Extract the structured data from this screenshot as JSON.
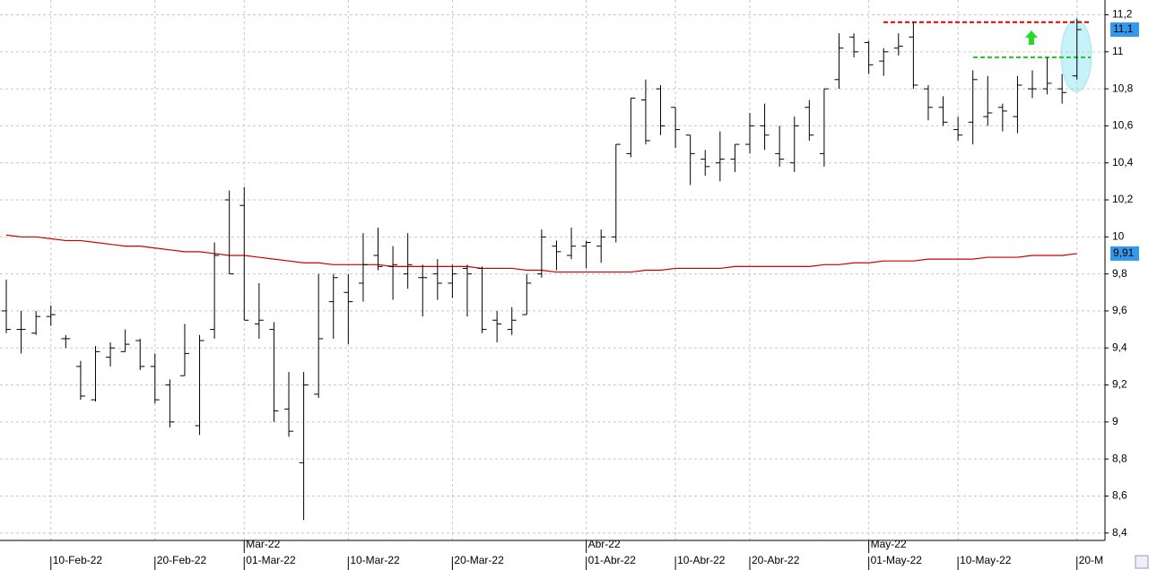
{
  "chart_data": {
    "type": "ohlc",
    "categories": [
      null,
      null,
      null,
      "10-Feb-22",
      null,
      null,
      null,
      null,
      null,
      null,
      "20-Feb-22",
      null,
      null,
      null,
      null,
      null,
      "01-Mar-22",
      null,
      null,
      null,
      null,
      null,
      null,
      "10-Mar-22",
      null,
      null,
      null,
      null,
      null,
      null,
      "20-Mar-22",
      null,
      null,
      null,
      null,
      null,
      null,
      null,
      null,
      "01-Abr-22",
      null,
      null,
      null,
      null,
      null,
      "10-Abr-22",
      null,
      null,
      null,
      null,
      "20-Abr-22",
      null,
      null,
      null,
      null,
      null,
      null,
      null,
      "01-May-22",
      null,
      null,
      null,
      null,
      null,
      "10-May-22",
      null,
      null,
      null,
      null,
      null,
      null,
      null,
      "20-M"
    ],
    "month_labels": [
      null,
      null,
      null,
      null,
      null,
      null,
      null,
      null,
      null,
      null,
      null,
      null,
      null,
      null,
      null,
      null,
      "Mar-22",
      null,
      null,
      null,
      null,
      null,
      null,
      null,
      null,
      null,
      null,
      null,
      null,
      null,
      null,
      null,
      null,
      null,
      null,
      null,
      null,
      null,
      null,
      "Abr-22",
      null,
      null,
      null,
      null,
      null,
      null,
      null,
      null,
      null,
      null,
      null,
      null,
      null,
      null,
      null,
      null,
      null,
      null,
      "May-22",
      null,
      null,
      null,
      null,
      null,
      null,
      null,
      null,
      null,
      null,
      null,
      null,
      null,
      null,
      null
    ],
    "ohlc": [
      [
        9.6,
        9.77,
        9.48,
        9.5
      ],
      [
        9.5,
        9.6,
        9.37,
        9.5
      ],
      [
        9.48,
        9.6,
        9.47,
        9.57
      ],
      [
        9.57,
        9.63,
        9.52,
        9.58
      ],
      [
        9.45,
        9.47,
        9.4,
        9.45
      ],
      [
        9.3,
        9.33,
        9.12,
        9.14
      ],
      [
        9.12,
        9.41,
        9.11,
        9.38
      ],
      [
        9.35,
        9.43,
        9.3,
        9.4
      ],
      [
        9.38,
        9.5,
        9.38,
        9.42
      ],
      [
        9.44,
        9.45,
        9.28,
        9.3
      ],
      [
        9.3,
        9.37,
        9.1,
        9.12
      ],
      [
        9.2,
        9.23,
        8.97,
        9.0
      ],
      [
        9.25,
        9.53,
        9.25,
        9.37
      ],
      [
        8.98,
        9.47,
        8.93,
        9.44
      ],
      [
        9.5,
        9.97,
        9.45,
        9.9
      ],
      [
        10.2,
        10.25,
        9.8,
        9.8
      ],
      [
        10.17,
        10.27,
        9.55,
        9.55
      ],
      [
        9.53,
        9.75,
        9.45,
        9.55
      ],
      [
        9.5,
        9.54,
        9.0,
        9.06
      ],
      [
        9.07,
        9.27,
        8.92,
        8.95
      ],
      [
        8.78,
        9.27,
        8.47,
        9.2
      ],
      [
        9.15,
        9.8,
        9.13,
        9.45
      ],
      [
        9.65,
        9.8,
        9.45,
        9.78
      ],
      [
        9.7,
        9.8,
        9.42,
        9.65
      ],
      [
        9.75,
        10.02,
        9.65,
        9.85
      ],
      [
        9.9,
        10.05,
        9.82,
        9.84
      ],
      [
        9.84,
        9.95,
        9.66,
        9.85
      ],
      [
        9.8,
        10.02,
        9.72,
        9.85
      ],
      [
        9.78,
        9.85,
        9.57,
        9.78
      ],
      [
        9.8,
        9.88,
        9.66,
        9.75
      ],
      [
        9.75,
        9.85,
        9.67,
        9.8
      ],
      [
        9.83,
        9.85,
        9.57,
        9.8
      ],
      [
        9.83,
        9.84,
        9.48,
        9.5
      ],
      [
        9.55,
        9.6,
        9.43,
        9.53
      ],
      [
        9.5,
        9.62,
        9.47,
        9.55
      ],
      [
        9.58,
        9.8,
        9.58,
        9.75
      ],
      [
        9.8,
        10.04,
        9.78,
        10.0
      ],
      [
        9.95,
        9.98,
        9.82,
        9.92
      ],
      [
        9.9,
        10.05,
        9.88,
        9.95
      ],
      [
        9.95,
        9.98,
        9.83,
        9.97
      ],
      [
        9.95,
        10.04,
        9.86,
        10.0
      ],
      [
        10.0,
        10.5,
        9.97,
        10.5
      ],
      [
        10.45,
        10.75,
        10.43,
        10.75
      ],
      [
        10.74,
        10.85,
        10.5,
        10.52
      ],
      [
        10.8,
        10.82,
        10.55,
        10.6
      ],
      [
        10.7,
        10.7,
        10.48,
        10.58
      ],
      [
        10.55,
        10.55,
        10.28,
        10.45
      ],
      [
        10.42,
        10.47,
        10.33,
        10.38
      ],
      [
        10.4,
        10.57,
        10.3,
        10.42
      ],
      [
        10.42,
        10.5,
        10.35,
        10.5
      ],
      [
        10.5,
        10.67,
        10.45,
        10.6
      ],
      [
        10.6,
        10.72,
        10.47,
        10.55
      ],
      [
        10.45,
        10.6,
        10.38,
        10.42
      ],
      [
        10.4,
        10.65,
        10.35,
        10.6
      ],
      [
        10.7,
        10.74,
        10.52,
        10.55
      ],
      [
        10.45,
        10.8,
        10.38,
        10.8
      ],
      [
        10.85,
        11.1,
        10.8,
        11.02
      ],
      [
        11.08,
        11.1,
        10.97,
        11.0
      ],
      [
        11.05,
        11.06,
        10.88,
        10.93
      ],
      [
        10.95,
        11.02,
        10.87,
        11.0
      ],
      [
        11.02,
        11.1,
        10.98,
        11.03
      ],
      [
        11.08,
        11.16,
        10.8,
        10.82
      ],
      [
        10.8,
        10.82,
        10.63,
        10.7
      ],
      [
        10.7,
        10.76,
        10.6,
        10.62
      ],
      [
        10.58,
        10.65,
        10.52,
        10.55
      ],
      [
        10.62,
        10.9,
        10.5,
        10.85
      ],
      [
        10.65,
        10.87,
        10.6,
        10.67
      ],
      [
        10.7,
        10.72,
        10.57,
        10.68
      ],
      [
        10.65,
        10.87,
        10.56,
        10.82
      ],
      [
        10.8,
        10.9,
        10.75,
        10.8
      ],
      [
        10.8,
        10.97,
        10.77,
        10.83
      ],
      [
        10.8,
        10.88,
        10.72,
        10.78
      ],
      [
        10.87,
        11.18,
        10.85,
        11.12
      ]
    ],
    "bar_color": "#000000",
    "ma": {
      "color": "#cc0000",
      "values": [
        10.01,
        10.0,
        10.0,
        9.99,
        9.98,
        9.98,
        9.97,
        9.96,
        9.95,
        9.95,
        9.94,
        9.93,
        9.92,
        9.92,
        9.91,
        9.9,
        9.9,
        9.89,
        9.88,
        9.87,
        9.86,
        9.86,
        9.85,
        9.85,
        9.85,
        9.85,
        9.84,
        9.84,
        9.84,
        9.84,
        9.84,
        9.84,
        9.83,
        9.83,
        9.83,
        9.82,
        9.82,
        9.81,
        9.81,
        9.81,
        9.81,
        9.81,
        9.81,
        9.82,
        9.82,
        9.83,
        9.83,
        9.83,
        9.83,
        9.84,
        9.84,
        9.84,
        9.84,
        9.84,
        9.84,
        9.85,
        9.85,
        9.86,
        9.86,
        9.87,
        9.87,
        9.87,
        9.88,
        9.88,
        9.88,
        9.88,
        9.89,
        9.89,
        9.89,
        9.9,
        9.9,
        9.9,
        9.91
      ]
    },
    "levels": [
      {
        "value": 11.16,
        "color": "#dd0000"
      },
      {
        "value": 10.97,
        "color": "#22cc22"
      }
    ],
    "price_tags": [
      {
        "value": 11.12,
        "label": "11,1"
      },
      {
        "value": 9.91,
        "label": "9,91"
      }
    ],
    "tag_color": "#3399ee",
    "ylim": [
      8.36,
      11.28
    ],
    "yticks": [
      {
        "value": 8.4,
        "label": "8,4"
      },
      {
        "value": 8.6,
        "label": "8,6"
      },
      {
        "value": 8.8,
        "label": "8,8"
      },
      9,
      {
        "value": 9.2,
        "label": "9,2"
      },
      {
        "value": 9.4,
        "label": "9,4"
      },
      {
        "value": 9.6,
        "label": "9,6"
      },
      {
        "value": 9.8,
        "label": "9,8"
      },
      10,
      {
        "value": 10.2,
        "label": "10,2"
      },
      {
        "value": 10.4,
        "label": "10,4"
      },
      {
        "value": 10.6,
        "label": "10,6"
      },
      {
        "value": 10.8,
        "label": "10,8"
      },
      11,
      {
        "value": 11.2,
        "label": "11,2"
      }
    ],
    "grid": true
  }
}
